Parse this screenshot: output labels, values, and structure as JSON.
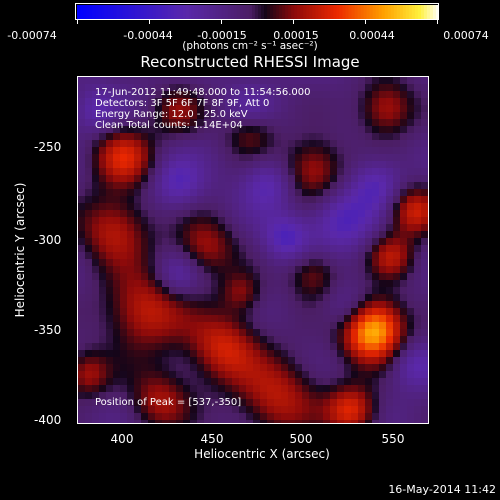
{
  "colorbar": {
    "ticks": [
      "-0.00074",
      "-0.00044",
      "-0.00015",
      "0.00015",
      "0.00044",
      "0.00074"
    ],
    "unit_label": "(photons cm⁻² s⁻¹ asec⁻²)"
  },
  "title": "Reconstructed RHESSI Image",
  "annotations": {
    "time_range": "17-Jun-2012 11:49:48.000 to 11:54:56.000",
    "detectors": "Detectors: 3F 5F 6F 7F 8F 9F, Att 0",
    "energy_range": "Energy Range: 12.0 - 25.0 keV",
    "clean_counts": "Clean     Total counts: 1.14E+04",
    "peak_position": "Position of Peak = [537,-350]"
  },
  "footer": "16-May-2014 11:42",
  "chart_data": {
    "type": "heatmap",
    "title": "Reconstructed RHESSI Image",
    "xlabel": "Heliocentric X (arcsec)",
    "ylabel": "Heliocentric Y (arcsec)",
    "xlim": [
      375,
      568
    ],
    "ylim": [
      -402,
      -211
    ],
    "xticks": [
      "400",
      "450",
      "500",
      "550"
    ],
    "yticks": [
      "-250",
      "-300",
      "-350",
      "-400"
    ],
    "color_range": [
      -0.00074,
      0.00074
    ],
    "colormap": "blue-purple-red-yellow-white",
    "peak": {
      "x": 537,
      "y": -350
    },
    "blobs": [
      {
        "x": 537,
        "y": -350,
        "r": 12,
        "v": 1.0
      },
      {
        "x": 526,
        "y": -395,
        "r": 10,
        "v": 0.55
      },
      {
        "x": 485,
        "y": -388,
        "r": 16,
        "v": 0.45
      },
      {
        "x": 455,
        "y": -360,
        "r": 14,
        "v": 0.5
      },
      {
        "x": 412,
        "y": -340,
        "r": 16,
        "v": 0.5
      },
      {
        "x": 395,
        "y": -295,
        "r": 14,
        "v": 0.45
      },
      {
        "x": 400,
        "y": -255,
        "r": 12,
        "v": 0.5
      },
      {
        "x": 445,
        "y": -305,
        "r": 12,
        "v": 0.4
      },
      {
        "x": 470,
        "y": -240,
        "r": 10,
        "v": 0.35
      },
      {
        "x": 505,
        "y": -262,
        "r": 12,
        "v": 0.45
      },
      {
        "x": 545,
        "y": -228,
        "r": 11,
        "v": 0.45
      },
      {
        "x": 560,
        "y": -285,
        "r": 10,
        "v": 0.5
      },
      {
        "x": 548,
        "y": -310,
        "r": 9,
        "v": 0.4
      },
      {
        "x": 505,
        "y": -320,
        "r": 10,
        "v": 0.35
      },
      {
        "x": 420,
        "y": -390,
        "r": 12,
        "v": 0.4
      },
      {
        "x": 380,
        "y": -375,
        "r": 9,
        "v": 0.4
      },
      {
        "x": 430,
        "y": -230,
        "r": 10,
        "v": 0.3
      },
      {
        "x": 465,
        "y": -330,
        "r": 8,
        "v": 0.3
      },
      {
        "x": 490,
        "y": -300,
        "r": 9,
        "v": -0.35
      },
      {
        "x": 520,
        "y": -290,
        "r": 12,
        "v": -0.35
      },
      {
        "x": 480,
        "y": -270,
        "r": 10,
        "v": -0.3
      },
      {
        "x": 430,
        "y": -270,
        "r": 10,
        "v": -0.3
      },
      {
        "x": 430,
        "y": -320,
        "r": 9,
        "v": -0.3
      },
      {
        "x": 525,
        "y": -340,
        "r": 10,
        "v": -0.3
      },
      {
        "x": 540,
        "y": -270,
        "r": 10,
        "v": -0.3
      },
      {
        "x": 385,
        "y": -230,
        "r": 9,
        "v": -0.25
      },
      {
        "x": 470,
        "y": -230,
        "r": 9,
        "v": -0.25
      },
      {
        "x": 560,
        "y": -370,
        "r": 9,
        "v": -0.25
      }
    ]
  }
}
